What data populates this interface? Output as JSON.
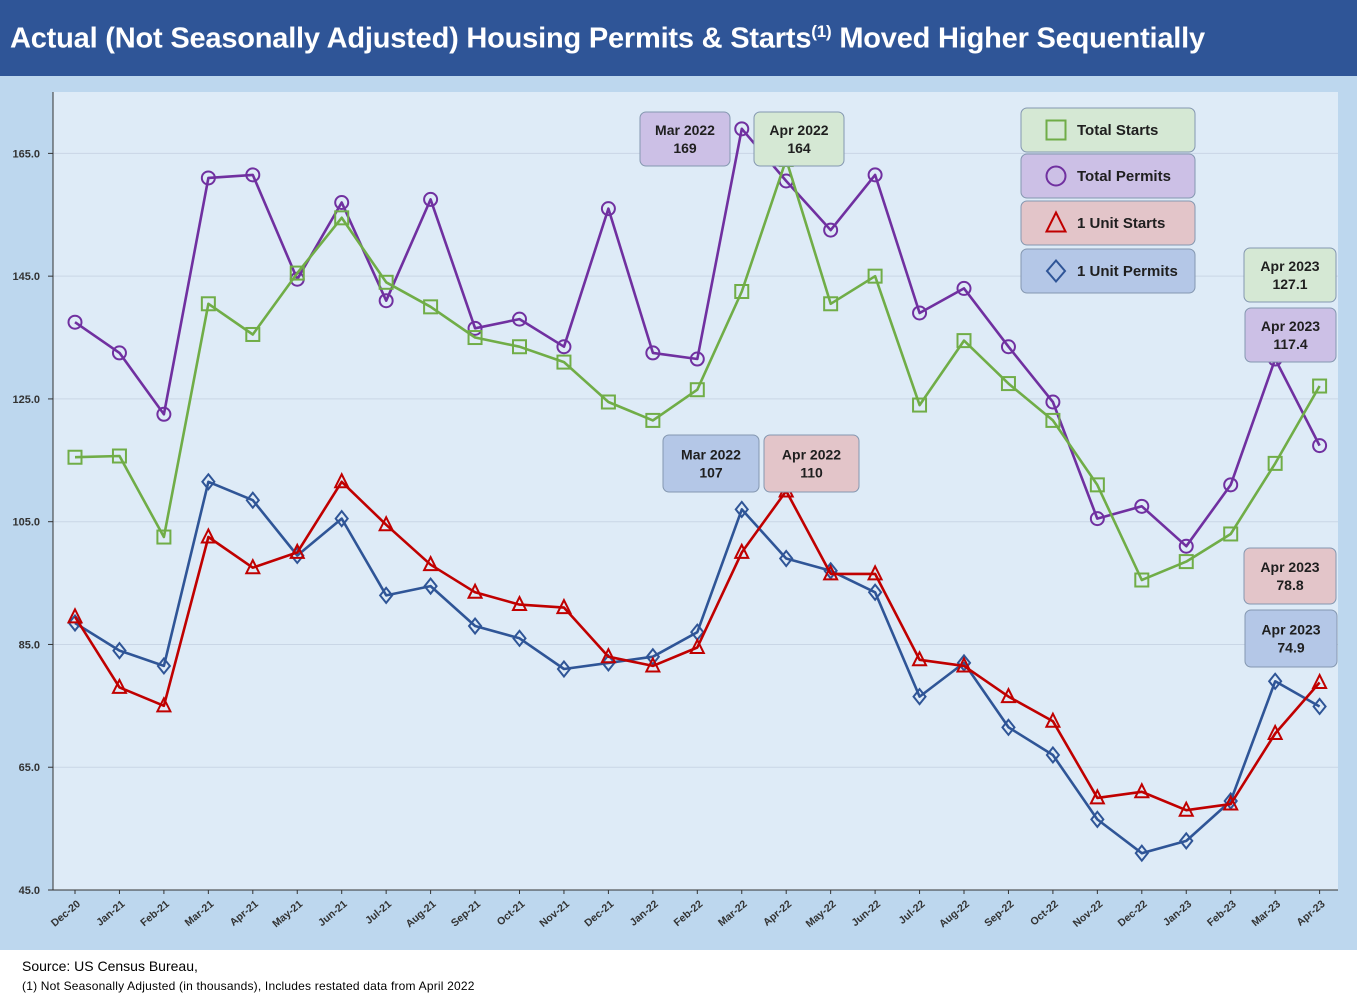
{
  "title": {
    "main": "Actual (Not Seasonally Adjusted) Housing Permits & Starts",
    "superscript": "(1)",
    "rest": " Moved Higher Sequentially"
  },
  "footer": {
    "source": "Source: US Census Bureau,",
    "note": "(1) Not Seasonally Adjusted (in thousands), Includes restated data from April 2022"
  },
  "colors": {
    "title_bar": "#2f5597",
    "panel": "#bdd7ee",
    "plot_bg": "#deebf7",
    "total_starts": "#70ad47",
    "total_permits": "#7030a0",
    "unit_starts": "#c00000",
    "unit_permits": "#2f5597"
  },
  "chart_data": {
    "type": "line",
    "title": "Actual (Not Seasonally Adjusted) Housing Permits & Starts(1) Moved Higher Sequentially",
    "xlabel": "",
    "ylabel": "",
    "ylim": [
      45,
      175
    ],
    "yticks": [
      "45.0",
      "65.0",
      "85.0",
      "105.0",
      "125.0",
      "145.0",
      "165.0"
    ],
    "ytick_values": [
      45,
      65,
      85,
      105,
      125,
      145,
      165
    ],
    "grid": true,
    "legend_position": "top-right",
    "categories": [
      "Dec-20",
      "Jan-21",
      "Feb-21",
      "Mar-21",
      "Apr-21",
      "May-21",
      "Jun-21",
      "Jul-21",
      "Aug-21",
      "Sep-21",
      "Oct-21",
      "Nov-21",
      "Dec-21",
      "Jan-22",
      "Feb-22",
      "Mar-22",
      "Apr-22",
      "May-22",
      "Jun-22",
      "Jul-22",
      "Aug-22",
      "Sep-22",
      "Oct-22",
      "Nov-22",
      "Dec-22",
      "Jan-23",
      "Feb-23",
      "Mar-23",
      "Apr-23"
    ],
    "series": [
      {
        "name": "Total Starts",
        "marker": "square",
        "color": "#70ad47",
        "values": [
          115.5,
          115.7,
          102.5,
          140.5,
          135.5,
          145.5,
          154.5,
          144,
          140,
          135,
          133.5,
          131,
          124.5,
          121.5,
          126.5,
          142.5,
          164,
          140.5,
          145,
          124,
          134.5,
          127.5,
          121.5,
          111,
          95.5,
          98.5,
          103,
          114.5,
          127.1
        ]
      },
      {
        "name": "Total Permits",
        "marker": "circle",
        "color": "#7030a0",
        "values": [
          137.5,
          132.5,
          122.5,
          161,
          161.5,
          144.5,
          157,
          141,
          157.5,
          136.5,
          138,
          133.5,
          156,
          132.5,
          131.5,
          169,
          160.5,
          152.5,
          161.5,
          139,
          143,
          133.5,
          124.5,
          105.5,
          107.5,
          101,
          111,
          131.5,
          117.4
        ]
      },
      {
        "name": "1 Unit Starts",
        "marker": "triangle",
        "color": "#c00000",
        "values": [
          89.5,
          78,
          75,
          102.5,
          97.5,
          100,
          111.5,
          104.5,
          98,
          93.5,
          91.5,
          91,
          83,
          81.5,
          84.5,
          100,
          110,
          96.5,
          96.5,
          82.5,
          81.5,
          76.5,
          72.5,
          60,
          61,
          58,
          59,
          70.5,
          78.8
        ]
      },
      {
        "name": "1 Unit Permits",
        "marker": "diamond",
        "color": "#2f5597",
        "values": [
          88.5,
          84,
          81.5,
          111.5,
          108.5,
          99.5,
          105.5,
          93,
          94.5,
          88,
          86,
          81,
          82,
          83,
          87,
          107,
          99,
          97,
          93.5,
          76.5,
          82,
          71.5,
          67,
          56.5,
          51,
          53,
          59.5,
          79,
          74.9
        ]
      }
    ],
    "annotations": [
      {
        "label": "Mar 2022",
        "value": "169",
        "series": "Total Permits",
        "fill": "#ccc0e6"
      },
      {
        "label": "Apr 2022",
        "value": "164",
        "series": "Total Starts",
        "fill": "#d5e8d4"
      },
      {
        "label": "Mar 2022",
        "value": "107",
        "series": "1 Unit Permits",
        "fill": "#b4c7e7"
      },
      {
        "label": "Apr 2022",
        "value": "110",
        "series": "1 Unit Starts",
        "fill": "#e3c5c9"
      },
      {
        "label": "Apr 2023",
        "value": "127.1",
        "series": "Total Starts",
        "fill": "#d5e8d4"
      },
      {
        "label": "Apr 2023",
        "value": "117.4",
        "series": "Total Permits",
        "fill": "#ccc0e6"
      },
      {
        "label": "Apr 2023",
        "value": "78.8",
        "series": "1 Unit Starts",
        "fill": "#e3c5c9"
      },
      {
        "label": "Apr 2023",
        "value": "74.9",
        "series": "1 Unit Permits",
        "fill": "#b4c7e7"
      }
    ],
    "legend": [
      {
        "label": "Total Starts",
        "marker": "square",
        "fill": "#d5e8d4"
      },
      {
        "label": "Total Permits",
        "marker": "circle",
        "fill": "#ccc0e6"
      },
      {
        "label": "1 Unit Starts",
        "marker": "triangle",
        "fill": "#e3c5c9"
      },
      {
        "label": "1 Unit Permits",
        "marker": "diamond",
        "fill": "#b4c7e7"
      }
    ]
  }
}
